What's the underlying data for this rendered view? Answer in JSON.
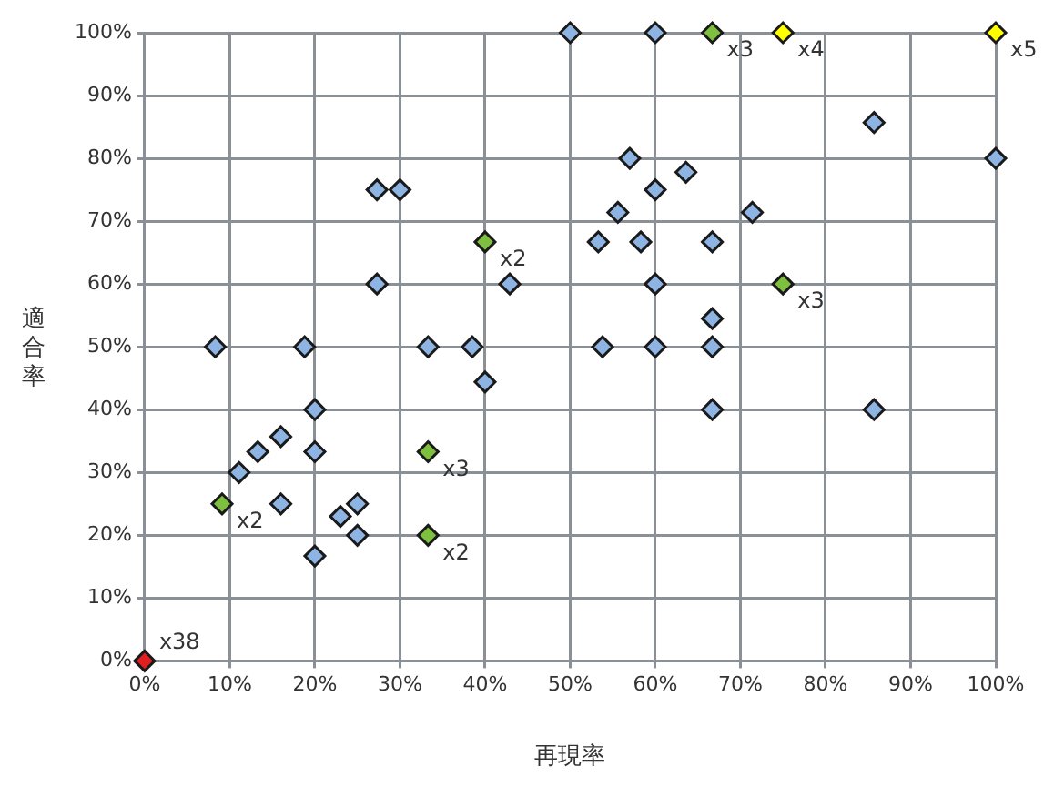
{
  "chart_data": {
    "type": "scatter",
    "xlabel": "再現率",
    "ylabel": "適合率",
    "xlim": [
      0,
      100
    ],
    "ylim": [
      0,
      100
    ],
    "xticks": [
      {
        "value": 0,
        "label": "0%"
      },
      {
        "value": 10,
        "label": "10%"
      },
      {
        "value": 20,
        "label": "20%"
      },
      {
        "value": 30,
        "label": "30%"
      },
      {
        "value": 40,
        "label": "40%"
      },
      {
        "value": 50,
        "label": "50%"
      },
      {
        "value": 60,
        "label": "60%"
      },
      {
        "value": 70,
        "label": "70%"
      },
      {
        "value": 80,
        "label": "80%"
      },
      {
        "value": 90,
        "label": "90%"
      },
      {
        "value": 100,
        "label": "100%"
      }
    ],
    "yticks": [
      {
        "value": 0,
        "label": "0%"
      },
      {
        "value": 10,
        "label": "10%"
      },
      {
        "value": 20,
        "label": "20%"
      },
      {
        "value": 30,
        "label": "30%"
      },
      {
        "value": 40,
        "label": "40%"
      },
      {
        "value": 50,
        "label": "50%"
      },
      {
        "value": 60,
        "label": "60%"
      },
      {
        "value": 70,
        "label": "70%"
      },
      {
        "value": 80,
        "label": "80%"
      },
      {
        "value": 90,
        "label": "90%"
      },
      {
        "value": 100,
        "label": "100%"
      }
    ],
    "grid": true,
    "legend": false,
    "marker": "diamond",
    "series": [
      {
        "color": "#8db4e2",
        "x": [
          8.3,
          18.8,
          27.3,
          27.3,
          30,
          33.3,
          38.5,
          40,
          42.9,
          20,
          20,
          13.3,
          16,
          11.1,
          16,
          20,
          23,
          25,
          25,
          50,
          60,
          57,
          55.6,
          63.6,
          60,
          53.3,
          58.3,
          66.7,
          71.4,
          53.8,
          60,
          60,
          66.7,
          66.7,
          66.7,
          85.7,
          100,
          85.7
        ],
        "values": [
          50,
          50,
          60,
          75,
          75,
          50,
          50,
          44.4,
          60,
          40,
          33.3,
          33.3,
          35.7,
          30,
          25,
          16.7,
          23,
          25,
          20,
          100,
          100,
          80,
          71.4,
          77.8,
          75,
          66.7,
          66.7,
          66.7,
          71.4,
          50,
          60,
          50,
          54.5,
          50,
          40,
          85.7,
          80,
          40
        ]
      },
      {
        "color": "#7fbf3f",
        "x": [
          66.7,
          40,
          75,
          33.3,
          9.1,
          33.3
        ],
        "values": [
          100,
          66.7,
          60,
          33.3,
          25,
          20
        ]
      },
      {
        "color": "#ffff00",
        "x": [
          75,
          100
        ],
        "values": [
          100,
          100
        ]
      },
      {
        "color": "#e02020",
        "x": [
          0
        ],
        "values": [
          0
        ]
      }
    ],
    "annotations": [
      {
        "text": "x3",
        "x": 66.7,
        "y": 100
      },
      {
        "text": "x4",
        "x": 75,
        "y": 100
      },
      {
        "text": "x5",
        "x": 100,
        "y": 100
      },
      {
        "text": "x2",
        "x": 40,
        "y": 66.7
      },
      {
        "text": "x3",
        "x": 75,
        "y": 60
      },
      {
        "text": "x3",
        "x": 33.3,
        "y": 33.3
      },
      {
        "text": "x2",
        "x": 9.1,
        "y": 25
      },
      {
        "text": "x2",
        "x": 33.3,
        "y": 20
      },
      {
        "text": "x38",
        "x": 0,
        "y": 0
      }
    ]
  }
}
